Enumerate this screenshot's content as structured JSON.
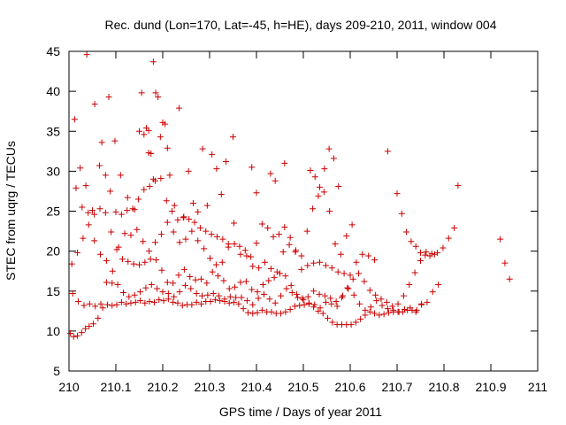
{
  "chart_data": {
    "type": "scatter",
    "title": "Rec. dund (Lon=170, Lat=-45, h=HE), days 209-210, 2011, window 004",
    "xlabel": "GPS time / Days of year 2011",
    "ylabel": "STEC from uqrg / TECUs",
    "xlim": [
      210,
      211
    ],
    "ylim": [
      5,
      45
    ],
    "xticks": [
      "210",
      "210.1",
      "210.2",
      "210.3",
      "210.4",
      "210.5",
      "210.6",
      "210.7",
      "210.8",
      "210.9",
      "211"
    ],
    "yticks": [
      "5",
      "10",
      "15",
      "20",
      "25",
      "30",
      "35",
      "40",
      "45"
    ],
    "grid": false,
    "legend": "none",
    "marker_color": "#cc0000",
    "series": [
      {
        "x": [
          210.003,
          210.01,
          210.018,
          210.027,
          210.035,
          210.043,
          210.052,
          210.062,
          210.072,
          210.082,
          210.092,
          210.102,
          210.112,
          210.122,
          210.132,
          210.142,
          210.152,
          210.162,
          210.172,
          210.182,
          210.192,
          210.202,
          210.212,
          210.222,
          210.232,
          210.242,
          210.252,
          210.262,
          210.272,
          210.282,
          210.292,
          210.302,
          210.312,
          210.322,
          210.332,
          210.342,
          210.352,
          210.362,
          210.372,
          210.382,
          210.392,
          210.402,
          210.412,
          210.422,
          210.432,
          210.442,
          210.452,
          210.462,
          210.472,
          210.482,
          210.492,
          210.502,
          210.512,
          210.522,
          210.532,
          210.542,
          210.552,
          210.562,
          210.572,
          210.582,
          210.592,
          210.602,
          210.612,
          210.622,
          210.632,
          210.642,
          210.652,
          210.662,
          210.672,
          210.682,
          210.692,
          210.702,
          210.712,
          210.722,
          210.732,
          210.742,
          210.752
        ],
        "y": [
          9.7,
          9.3,
          9.4,
          9.8,
          10.3,
          10.6,
          10.9,
          11.6,
          12.9,
          13.3,
          13.2,
          13.3,
          13.6,
          13.4,
          13.5,
          13.6,
          13.8,
          13.5,
          13.7,
          13.6,
          13.9,
          13.8,
          14.0,
          13.6,
          13.5,
          13.2,
          13.3,
          13.3,
          13.6,
          13.4,
          13.7,
          13.7,
          13.9,
          13.8,
          13.7,
          13.5,
          13.6,
          13.4,
          12.8,
          12.3,
          12.2,
          12.3,
          12.6,
          12.4,
          12.4,
          12.2,
          12.2,
          12.4,
          12.7,
          13.1,
          13.2,
          13.3,
          13.4,
          13.0,
          12.5,
          12.2,
          11.6,
          11.1,
          10.8,
          10.8,
          10.8,
          10.8,
          11.1,
          11.5,
          12.0,
          12.4,
          12.2,
          12.0,
          12.1,
          12.3,
          12.4,
          12.4,
          12.4,
          12.6,
          12.6,
          12.6,
          13.4
        ]
      },
      {
        "x": [
          210.008,
          210.02,
          210.032,
          210.044,
          210.056,
          210.068,
          210.08,
          210.092,
          210.104,
          210.116,
          210.128,
          210.14,
          210.152,
          210.164,
          210.176,
          210.188,
          210.2,
          210.212,
          210.224,
          210.236,
          210.248,
          210.26,
          210.272,
          210.284,
          210.296,
          210.308,
          210.32,
          210.332,
          210.344,
          210.356,
          210.368,
          210.38,
          210.392,
          210.404,
          210.416,
          210.428,
          210.44,
          210.452,
          210.464,
          210.476,
          210.488,
          210.5,
          210.512,
          210.524,
          210.536,
          210.548,
          210.56,
          210.572,
          210.584,
          210.596,
          210.608,
          210.62,
          210.632,
          210.644,
          210.656,
          210.668,
          210.68,
          210.692,
          210.704,
          210.716,
          210.728,
          210.74,
          210.752,
          210.764,
          210.776,
          210.788
        ],
        "y": [
          14.7,
          13.7,
          13.2,
          13.4,
          13.1,
          13.4,
          16.1,
          16.0,
          15.8,
          14.8,
          14.3,
          14.5,
          14.9,
          15.4,
          15.8,
          15.3,
          14.9,
          14.7,
          14.3,
          14.9,
          15.7,
          15.3,
          14.7,
          14.4,
          14.5,
          14.7,
          14.4,
          14.0,
          14.3,
          14.2,
          14.2,
          13.8,
          13.3,
          14.1,
          14.6,
          14.0,
          13.5,
          14.4,
          15.3,
          14.8,
          14.2,
          13.9,
          13.5,
          13.3,
          12.9,
          13.6,
          13.4,
          13.1,
          14.4,
          15.3,
          14.5,
          13.4,
          12.6,
          13.0,
          13.8,
          13.2,
          12.8,
          12.6,
          12.4,
          12.7,
          12.9,
          12.4,
          13.3,
          13.6,
          14.9,
          15.8
        ]
      },
      {
        "x": [
          210.006,
          210.018,
          210.03,
          210.042,
          210.054,
          210.066,
          210.078,
          210.09,
          210.102,
          210.114,
          210.126,
          210.138,
          210.15,
          210.162,
          210.174,
          210.186,
          210.198,
          210.21,
          210.222,
          210.234,
          210.246,
          210.258,
          210.27,
          210.282,
          210.294,
          210.306,
          210.318,
          210.33,
          210.342,
          210.354,
          210.366,
          210.378,
          210.39,
          210.402,
          210.414,
          210.426,
          210.438,
          210.45,
          210.462,
          210.474,
          210.486,
          210.498,
          210.51,
          210.522,
          210.534,
          210.546,
          210.558,
          210.57,
          210.582,
          210.594,
          210.606,
          210.618,
          210.63,
          210.642,
          210.654,
          210.666,
          210.678,
          210.69,
          210.702,
          210.714,
          210.726,
          210.738,
          210.75,
          210.762,
          210.774,
          210.786,
          210.798,
          210.81,
          210.822
        ],
        "y": [
          18.4,
          19.8,
          21.6,
          23.3,
          24.6,
          25.3,
          24.8,
          22.4,
          20.2,
          19.0,
          18.7,
          18.4,
          18.3,
          18.6,
          19.0,
          18.9,
          17.6,
          16.1,
          16.0,
          17.0,
          17.7,
          16.8,
          16.4,
          16.5,
          16.0,
          17.4,
          16.9,
          16.3,
          15.3,
          15.5,
          16.1,
          16.2,
          15.2,
          14.9,
          15.8,
          16.3,
          16.7,
          17.2,
          16.9,
          15.7,
          14.6,
          14.1,
          14.3,
          15.0,
          14.6,
          14.4,
          14.1,
          13.7,
          14.2,
          15.4,
          16.5,
          17.2,
          16.2,
          15.1,
          14.5,
          14.0,
          13.6,
          13.1,
          13.4,
          14.4,
          15.8,
          17.3,
          18.8,
          19.9,
          19.7,
          19.8,
          20.4,
          21.6,
          22.9
        ]
      },
      {
        "x": [
          210.015,
          210.028,
          210.041,
          210.054,
          210.067,
          210.08,
          210.093,
          210.106,
          210.119,
          210.132,
          210.145,
          210.158,
          210.171,
          210.184,
          210.197,
          210.21,
          210.223,
          210.236,
          210.249,
          210.262,
          210.275,
          210.288,
          210.301,
          210.314,
          210.327,
          210.34,
          210.353,
          210.366,
          210.379,
          210.392,
          210.405,
          210.418,
          210.431,
          210.444,
          210.457,
          210.47,
          210.483,
          210.496,
          210.509,
          210.522,
          210.535,
          210.548,
          210.561,
          210.574,
          210.587,
          210.6,
          210.613,
          210.626,
          210.639,
          210.652
        ],
        "y": [
          27.9,
          25.5,
          24.8,
          21.3,
          19.6,
          18.8,
          17.5,
          20.5,
          22.2,
          22.0,
          22.7,
          21.2,
          20.0,
          21.1,
          22.1,
          23.6,
          22.4,
          21.1,
          21.5,
          22.5,
          21.3,
          20.3,
          19.1,
          18.3,
          18.6,
          20.5,
          20.9,
          19.6,
          19.4,
          18.1,
          17.9,
          18.6,
          17.8,
          17.4,
          19.9,
          20.8,
          19.9,
          17.7,
          18.2,
          18.5,
          18.6,
          18.2,
          17.9,
          17.4,
          17.2,
          17.0,
          18.6,
          19.6,
          19.4,
          18.9
        ]
      },
      {
        "x": [
          210.012,
          210.024,
          210.036,
          210.05,
          210.065,
          210.078,
          210.088,
          210.1,
          210.112,
          210.124,
          210.136,
          210.148,
          210.16,
          210.172,
          210.184,
          210.196,
          210.208,
          210.22,
          210.232,
          210.244,
          210.256,
          210.268,
          210.28,
          210.292,
          210.304,
          210.316,
          210.328,
          210.34,
          210.352,
          210.364,
          210.376,
          210.388,
          210.4,
          210.412,
          210.424,
          210.436,
          210.448,
          210.46,
          210.472,
          210.484,
          210.496,
          210.508,
          210.52,
          210.532,
          210.544,
          210.556,
          210.568,
          210.58,
          210.592,
          210.604
        ],
        "y": [
          36.5,
          30.4,
          28.2,
          25.1,
          30.7,
          29.5,
          27.5,
          24.9,
          24.6,
          25.1,
          25.3,
          26.5,
          27.7,
          28.1,
          28.8,
          29.1,
          26.3,
          25.0,
          23.9,
          24.2,
          24.0,
          23.6,
          22.9,
          22.5,
          22.1,
          21.8,
          21.5,
          20.9,
          23.5,
          20.6,
          20.1,
          19.3,
          21.0,
          23.4,
          22.9,
          21.8,
          22.1,
          23.0,
          21.7,
          20.1,
          19.4,
          22.5,
          25.3,
          26.9,
          27.4,
          25.0,
          20.9,
          19.6,
          21.9,
          23.3
        ]
      },
      {
        "x": [
          210.038,
          210.055,
          210.07,
          210.085,
          210.098,
          210.11,
          210.125,
          210.14,
          210.155,
          210.165,
          210.175,
          210.185,
          210.195,
          210.205,
          210.215,
          210.225,
          210.235,
          210.245,
          210.255,
          210.265,
          210.275,
          210.285,
          210.295,
          210.305,
          210.315,
          210.325,
          210.335,
          210.35,
          210.39,
          210.4,
          210.43,
          210.44,
          210.46,
          210.515,
          210.525,
          210.535,
          210.545,
          210.555,
          210.565,
          210.575,
          210.68,
          210.7,
          210.71,
          210.72,
          210.73,
          210.74,
          210.75,
          210.76,
          210.77,
          210.78,
          210.83,
          210.92,
          210.93,
          210.94
        ],
        "y": [
          44.6,
          38.4,
          33.6,
          39.3,
          33.8,
          29.5,
          26.7,
          25.2,
          39.8,
          35.4,
          32.2,
          39.8,
          34.3,
          35.9,
          29.5,
          25.7,
          37.9,
          24.3,
          30.0,
          26.0,
          24.9,
          32.8,
          25.7,
          32.1,
          30.3,
          27.1,
          31.2,
          34.3,
          30.5,
          27.3,
          29.7,
          28.8,
          31.0,
          30.1,
          29.3,
          28.0,
          30.3,
          32.8,
          31.6,
          28.1,
          32.5,
          27.2,
          24.7,
          22.4,
          21.2,
          20.6,
          19.8,
          19.5,
          19.4,
          19.6,
          28.2,
          21.5,
          18.5,
          16.5
        ]
      },
      {
        "x": [
          210.15,
          210.16,
          210.17,
          210.18,
          210.19,
          210.2,
          210.21,
          210.17,
          210.18
        ],
        "y": [
          35.0,
          34.6,
          35.1,
          43.7,
          39.3,
          36.1,
          32.9,
          32.3,
          29.0
        ]
      }
    ]
  }
}
